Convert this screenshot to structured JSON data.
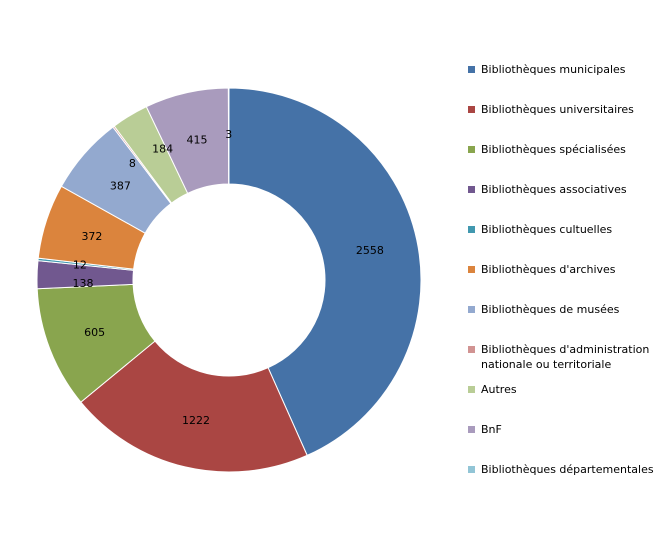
{
  "chart_data": {
    "type": "pie",
    "donut": true,
    "legend_position": "right",
    "categories": [
      "Bibliothèques municipales",
      "Bibliothèques universitaires",
      "Bibliothèques spécialisées",
      "Bibliothèques associatives",
      "Bibliothèques cultuelles",
      "Bibliothèques d'archives",
      "Bibliothèques de musées",
      "Bibliothèques d'administration nationale ou territoriale",
      "Autres",
      "BnF",
      "Bibliothèques départementales"
    ],
    "values": [
      2558,
      1222,
      605,
      138,
      12,
      372,
      387,
      8,
      184,
      415,
      3
    ],
    "data_labels": [
      "2558",
      "1222",
      "605",
      "138",
      "12",
      "372",
      "387",
      "8",
      "184",
      "415",
      "3"
    ],
    "colors": [
      "#4572a7",
      "#aa4643",
      "#89a54e",
      "#71588f",
      "#4198af",
      "#db843d",
      "#93a9cf",
      "#d19392",
      "#b9cd96",
      "#a99bbd",
      "#92c5d6"
    ]
  }
}
